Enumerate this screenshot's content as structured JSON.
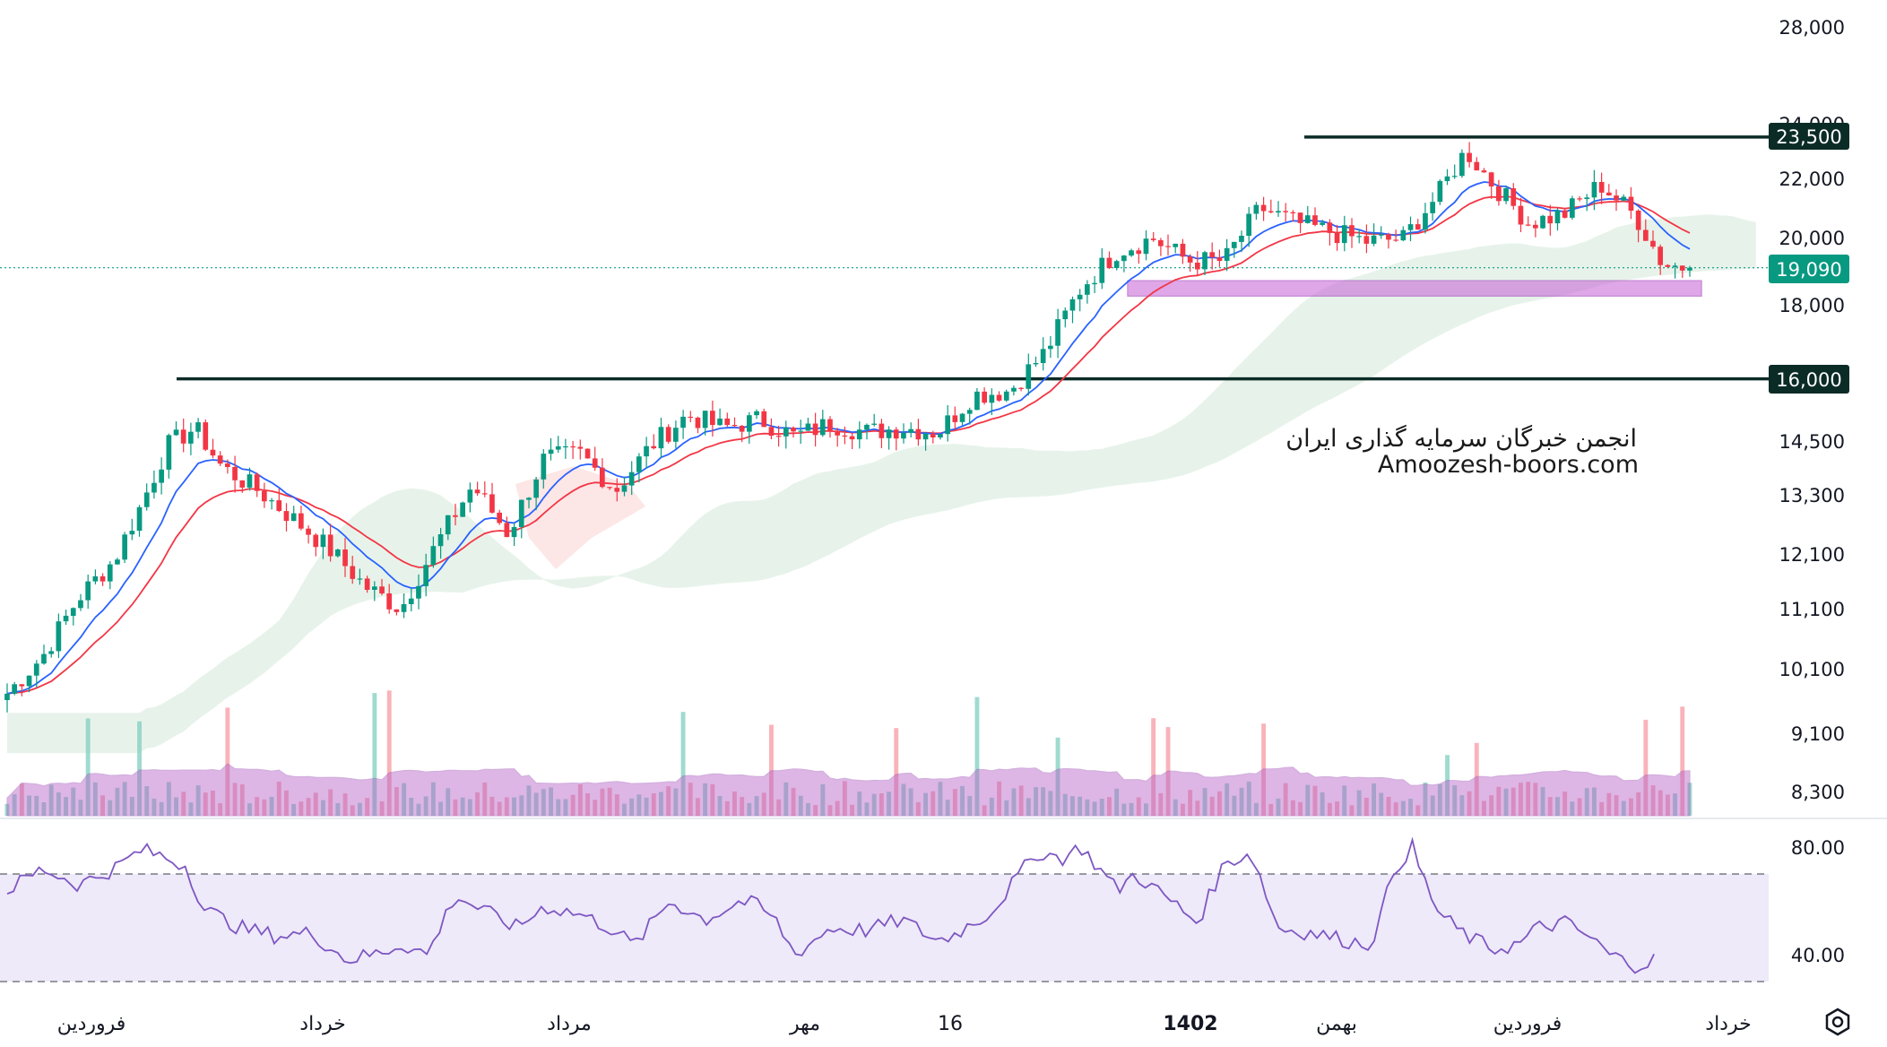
{
  "colors": {
    "up": "#089981",
    "down": "#f23645",
    "ema_fast": "#2962ff",
    "ema_slow": "#f23645",
    "cloud_bull": "#e3f1e6",
    "cloud_bear": "#fde3e3",
    "volume_ma": "#b45fc7",
    "rsi_line": "#7e57c2",
    "rsi_band": "#eeeaf9",
    "support_zone": "#c65fd6",
    "level_line": "#0b2b26",
    "last_price_tag": "#089981"
  },
  "watermark": {
    "line1": "انجمن خبرگان سرمایه گذاری ایران",
    "line2": "Amoozesh-boors.com"
  },
  "price_axis": {
    "labels": [
      "28,000",
      "24,000",
      "22,000",
      "20,000",
      "18,000",
      "14,500",
      "13,300",
      "12,100",
      "11,100",
      "10,100",
      "9,100",
      "8,300"
    ]
  },
  "rsi_axis": {
    "labels": [
      "80.00",
      "40.00"
    ]
  },
  "time_axis": {
    "labels": [
      "فروردین",
      "خرداد",
      "مرداد",
      "مهر",
      "16",
      "1402",
      "بهمن",
      "فروردین",
      "خرداد"
    ]
  },
  "tags": {
    "last_price": "19,090",
    "resistance": "23,500",
    "support": "16,000"
  },
  "settings_icon": "gear-icon",
  "chart_data": {
    "type": "candlestick",
    "price_scale": "log",
    "ylim": [
      7800,
      29500
    ],
    "horizontal_levels": [
      {
        "label": "23,500",
        "value": 23500
      },
      {
        "label": "16,000",
        "value": 16000
      }
    ],
    "support_zone": [
      18250,
      18700
    ],
    "last_price": 19090,
    "close_path": [
      [
        0,
        9700
      ],
      [
        0.02,
        10300
      ],
      [
        0.04,
        11300
      ],
      [
        0.06,
        12000
      ],
      [
        0.075,
        13100
      ],
      [
        0.09,
        14400
      ],
      [
        0.105,
        14800
      ],
      [
        0.12,
        13900
      ],
      [
        0.14,
        13400
      ],
      [
        0.16,
        12800
      ],
      [
        0.18,
        12200
      ],
      [
        0.2,
        11500
      ],
      [
        0.22,
        11100
      ],
      [
        0.24,
        12300
      ],
      [
        0.26,
        13500
      ],
      [
        0.28,
        12500
      ],
      [
        0.3,
        14100
      ],
      [
        0.32,
        14200
      ],
      [
        0.34,
        13400
      ],
      [
        0.36,
        14400
      ],
      [
        0.38,
        15100
      ],
      [
        0.4,
        14800
      ],
      [
        0.42,
        15000
      ],
      [
        0.44,
        14600
      ],
      [
        0.46,
        14900
      ],
      [
        0.48,
        14700
      ],
      [
        0.5,
        14800
      ],
      [
        0.52,
        14700
      ],
      [
        0.54,
        15600
      ],
      [
        0.56,
        15700
      ],
      [
        0.58,
        16700
      ],
      [
        0.6,
        18500
      ],
      [
        0.62,
        19600
      ],
      [
        0.64,
        20000
      ],
      [
        0.66,
        19300
      ],
      [
        0.68,
        19300
      ],
      [
        0.7,
        21000
      ],
      [
        0.72,
        20500
      ],
      [
        0.74,
        20200
      ],
      [
        0.76,
        19900
      ],
      [
        0.78,
        20000
      ],
      [
        0.8,
        21500
      ],
      [
        0.815,
        23000
      ],
      [
        0.83,
        21800
      ],
      [
        0.85,
        20500
      ],
      [
        0.87,
        20800
      ],
      [
        0.89,
        21800
      ],
      [
        0.91,
        20700
      ],
      [
        0.925,
        19200
      ],
      [
        0.94,
        19090
      ]
    ],
    "rsi_path": [
      [
        0,
        64
      ],
      [
        0.02,
        72
      ],
      [
        0.04,
        66
      ],
      [
        0.06,
        72
      ],
      [
        0.075,
        79
      ],
      [
        0.085,
        77
      ],
      [
        0.1,
        73
      ],
      [
        0.11,
        57
      ],
      [
        0.13,
        50
      ],
      [
        0.15,
        47
      ],
      [
        0.17,
        48
      ],
      [
        0.19,
        38
      ],
      [
        0.21,
        41
      ],
      [
        0.22,
        44
      ],
      [
        0.235,
        40
      ],
      [
        0.25,
        62
      ],
      [
        0.27,
        55
      ],
      [
        0.285,
        50
      ],
      [
        0.3,
        58
      ],
      [
        0.32,
        55
      ],
      [
        0.34,
        49
      ],
      [
        0.35,
        43
      ],
      [
        0.37,
        60
      ],
      [
        0.39,
        53
      ],
      [
        0.41,
        60
      ],
      [
        0.42,
        58
      ],
      [
        0.43,
        52
      ],
      [
        0.44,
        40
      ],
      [
        0.46,
        50
      ],
      [
        0.48,
        49
      ],
      [
        0.5,
        53
      ],
      [
        0.52,
        45
      ],
      [
        0.53,
        48
      ],
      [
        0.55,
        56
      ],
      [
        0.56,
        65
      ],
      [
        0.575,
        78
      ],
      [
        0.59,
        76
      ],
      [
        0.6,
        80
      ],
      [
        0.62,
        64
      ],
      [
        0.63,
        70
      ],
      [
        0.65,
        60
      ],
      [
        0.665,
        52
      ],
      [
        0.68,
        74
      ],
      [
        0.695,
        78
      ],
      [
        0.71,
        50
      ],
      [
        0.73,
        48
      ],
      [
        0.75,
        45
      ],
      [
        0.76,
        44
      ],
      [
        0.765,
        49
      ],
      [
        0.775,
        72
      ],
      [
        0.785,
        80
      ],
      [
        0.79,
        70
      ],
      [
        0.8,
        55
      ],
      [
        0.815,
        47
      ],
      [
        0.83,
        42
      ],
      [
        0.845,
        44
      ],
      [
        0.855,
        50
      ],
      [
        0.87,
        52
      ],
      [
        0.885,
        46
      ],
      [
        0.895,
        40
      ],
      [
        0.91,
        36
      ],
      [
        0.92,
        38
      ]
    ],
    "rsi_levels": [
      70,
      30
    ],
    "rsi_ylim": [
      28,
      88
    ]
  }
}
